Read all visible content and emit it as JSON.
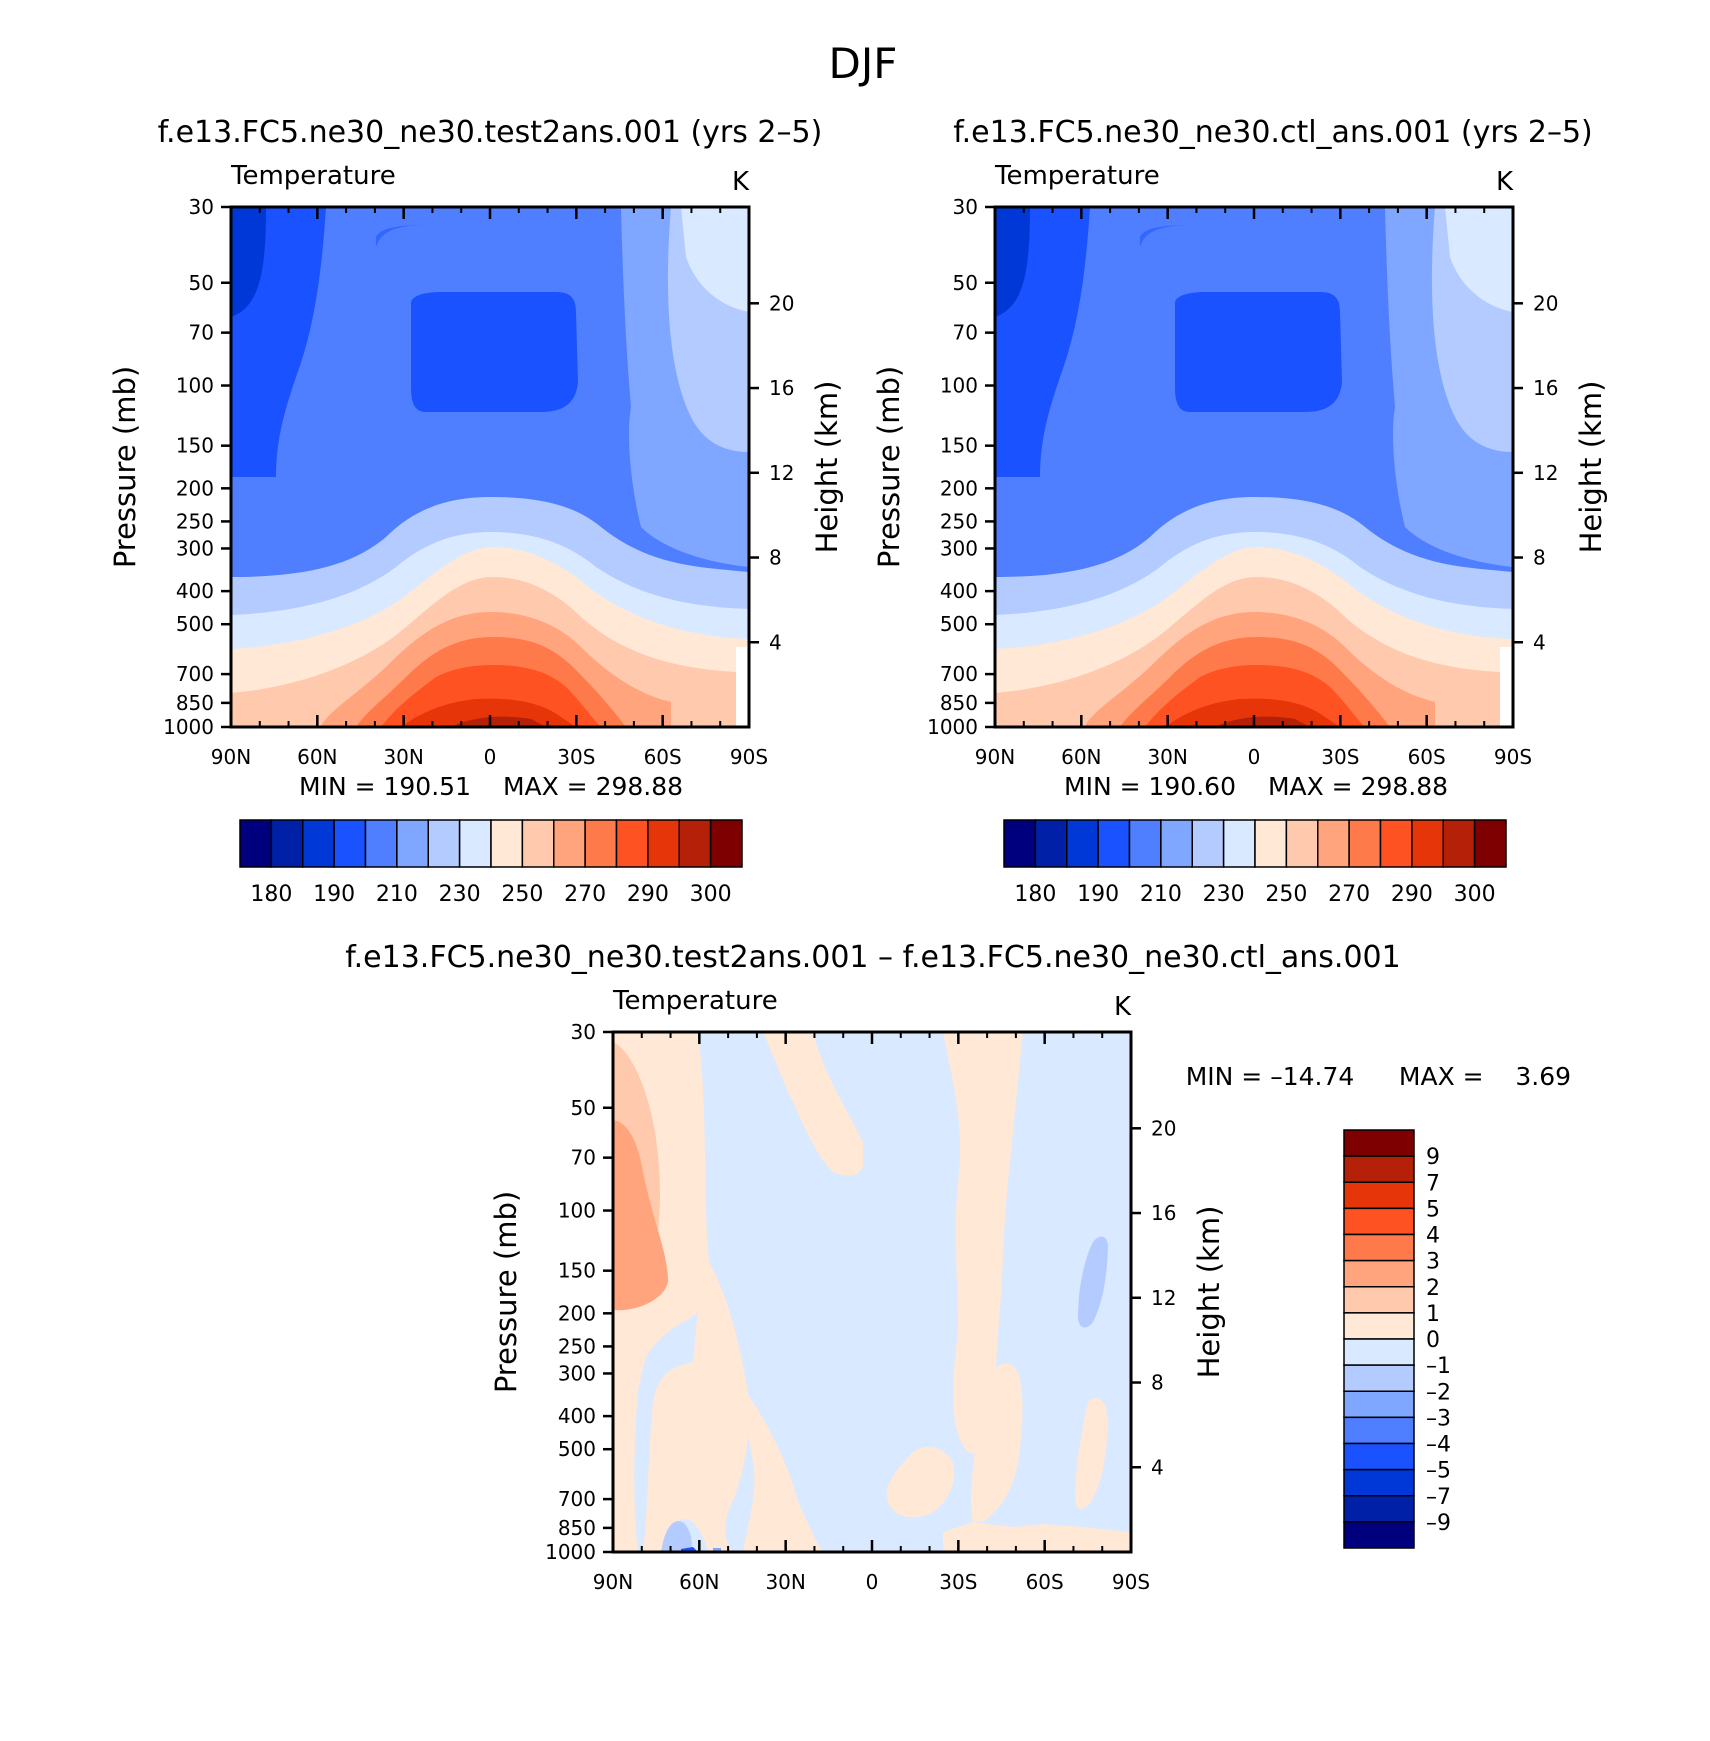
{
  "figure": {
    "season": "DJF"
  },
  "colors": {
    "abs_scale": [
      "#00007f",
      "#0020a8",
      "#0038d8",
      "#1a52ff",
      "#4f7fff",
      "#80a7ff",
      "#b3cbff",
      "#d9e9ff",
      "#ffe8d6",
      "#ffc9ae",
      "#ffa47d",
      "#ff7a4a",
      "#ff5222",
      "#e63508",
      "#b52108",
      "#7f0000"
    ],
    "diff_scale": [
      "#7f0000",
      "#b52108",
      "#e63508",
      "#ff5222",
      "#ff7a4a",
      "#ffa47d",
      "#ffc9ae",
      "#ffe8d6",
      "#d9e9ff",
      "#b3cbff",
      "#80a7ff",
      "#4f7fff",
      "#1a52ff",
      "#0038d8",
      "#0020a8",
      "#00007f"
    ]
  },
  "chart_data": [
    {
      "type": "heatmap",
      "panel": "test",
      "case_title": "f.e13.FC5.ne30_ne30.test2ans.001 (yrs 2–5)",
      "variable": "Temperature",
      "units": "K",
      "xlabel": "",
      "ylabel": "Pressure (mb)",
      "y2label": "Height (km)",
      "x_ticks": [
        "90N",
        "60N",
        "30N",
        "0",
        "30S",
        "60S",
        "90S"
      ],
      "y_ticks": [
        30,
        50,
        70,
        100,
        150,
        200,
        250,
        300,
        400,
        500,
        700,
        850,
        1000
      ],
      "y_log_scale": true,
      "ylim": [
        1000,
        30
      ],
      "y2_ticks": [
        4,
        8,
        12,
        16,
        20
      ],
      "min": 190.51,
      "max": 298.88,
      "stats_text": {
        "min_label": "MIN = 190.51",
        "max_label": "MAX = 298.88"
      },
      "colorbar_levels": [
        180,
        185,
        190,
        200,
        210,
        220,
        230,
        240,
        250,
        260,
        270,
        280,
        290,
        295,
        300
      ],
      "colorbar_tick_labels": [
        "180",
        "190",
        "210",
        "230",
        "250",
        "270",
        "290",
        "300"
      ]
    },
    {
      "type": "heatmap",
      "panel": "control",
      "case_title": "f.e13.FC5.ne30_ne30.ctl_ans.001 (yrs 2–5)",
      "variable": "Temperature",
      "units": "K",
      "xlabel": "",
      "ylabel": "Pressure (mb)",
      "y2label": "Height (km)",
      "x_ticks": [
        "90N",
        "60N",
        "30N",
        "0",
        "30S",
        "60S",
        "90S"
      ],
      "y_ticks": [
        30,
        50,
        70,
        100,
        150,
        200,
        250,
        300,
        400,
        500,
        700,
        850,
        1000
      ],
      "y_log_scale": true,
      "ylim": [
        1000,
        30
      ],
      "y2_ticks": [
        4,
        8,
        12,
        16,
        20
      ],
      "min": 190.6,
      "max": 298.88,
      "stats_text": {
        "min_label": "MIN = 190.60",
        "max_label": "MAX = 298.88"
      },
      "colorbar_levels": [
        180,
        185,
        190,
        200,
        210,
        220,
        230,
        240,
        250,
        260,
        270,
        280,
        290,
        295,
        300
      ],
      "colorbar_tick_labels": [
        "180",
        "190",
        "210",
        "230",
        "250",
        "270",
        "290",
        "300"
      ]
    },
    {
      "type": "heatmap",
      "panel": "difference",
      "case_title": "f.e13.FC5.ne30_ne30.test2ans.001 – f.e13.FC5.ne30_ne30.ctl_ans.001",
      "variable": "Temperature",
      "units": "K",
      "xlabel": "",
      "ylabel": "Pressure (mb)",
      "y2label": "Height (km)",
      "x_ticks": [
        "90N",
        "60N",
        "30N",
        "0",
        "30S",
        "60S",
        "90S"
      ],
      "y_ticks": [
        30,
        50,
        70,
        100,
        150,
        200,
        250,
        300,
        400,
        500,
        700,
        850,
        1000
      ],
      "y_log_scale": true,
      "ylim": [
        1000,
        30
      ],
      "y2_ticks": [
        4,
        8,
        12,
        16,
        20
      ],
      "min": -14.74,
      "max": 3.69,
      "stats_text": {
        "min_label": "MIN = –14.74",
        "max_label": "MAX =    3.69"
      },
      "colorbar_levels": [
        9,
        8,
        7,
        5,
        4,
        3,
        2,
        1,
        0,
        -1,
        -2,
        -3,
        -4,
        -5,
        -7,
        -9
      ],
      "colorbar_tick_labels": [
        "9",
        "7",
        "5",
        "4",
        "3",
        "2",
        "1",
        "0",
        "–1",
        "–2",
        "–3",
        "–4",
        "–5",
        "–7",
        "–9"
      ]
    }
  ]
}
